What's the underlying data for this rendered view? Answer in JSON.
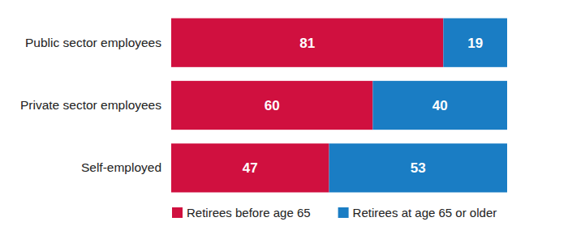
{
  "chart_data": {
    "type": "bar",
    "orientation": "horizontal",
    "stacked": true,
    "categories": [
      "Public sector employees",
      "Private sector employees",
      "Self-employed"
    ],
    "series": [
      {
        "name": "Retirees before age 65",
        "color": "#d0103f",
        "values": [
          81,
          60,
          47
        ]
      },
      {
        "name": "Retirees at age 65 or older",
        "color": "#1a7dc4",
        "values": [
          19,
          40,
          53
        ]
      }
    ],
    "xlim": [
      0,
      100
    ],
    "data_labels": true,
    "tick_labels": "y",
    "legend": "bottom",
    "grid": false
  }
}
